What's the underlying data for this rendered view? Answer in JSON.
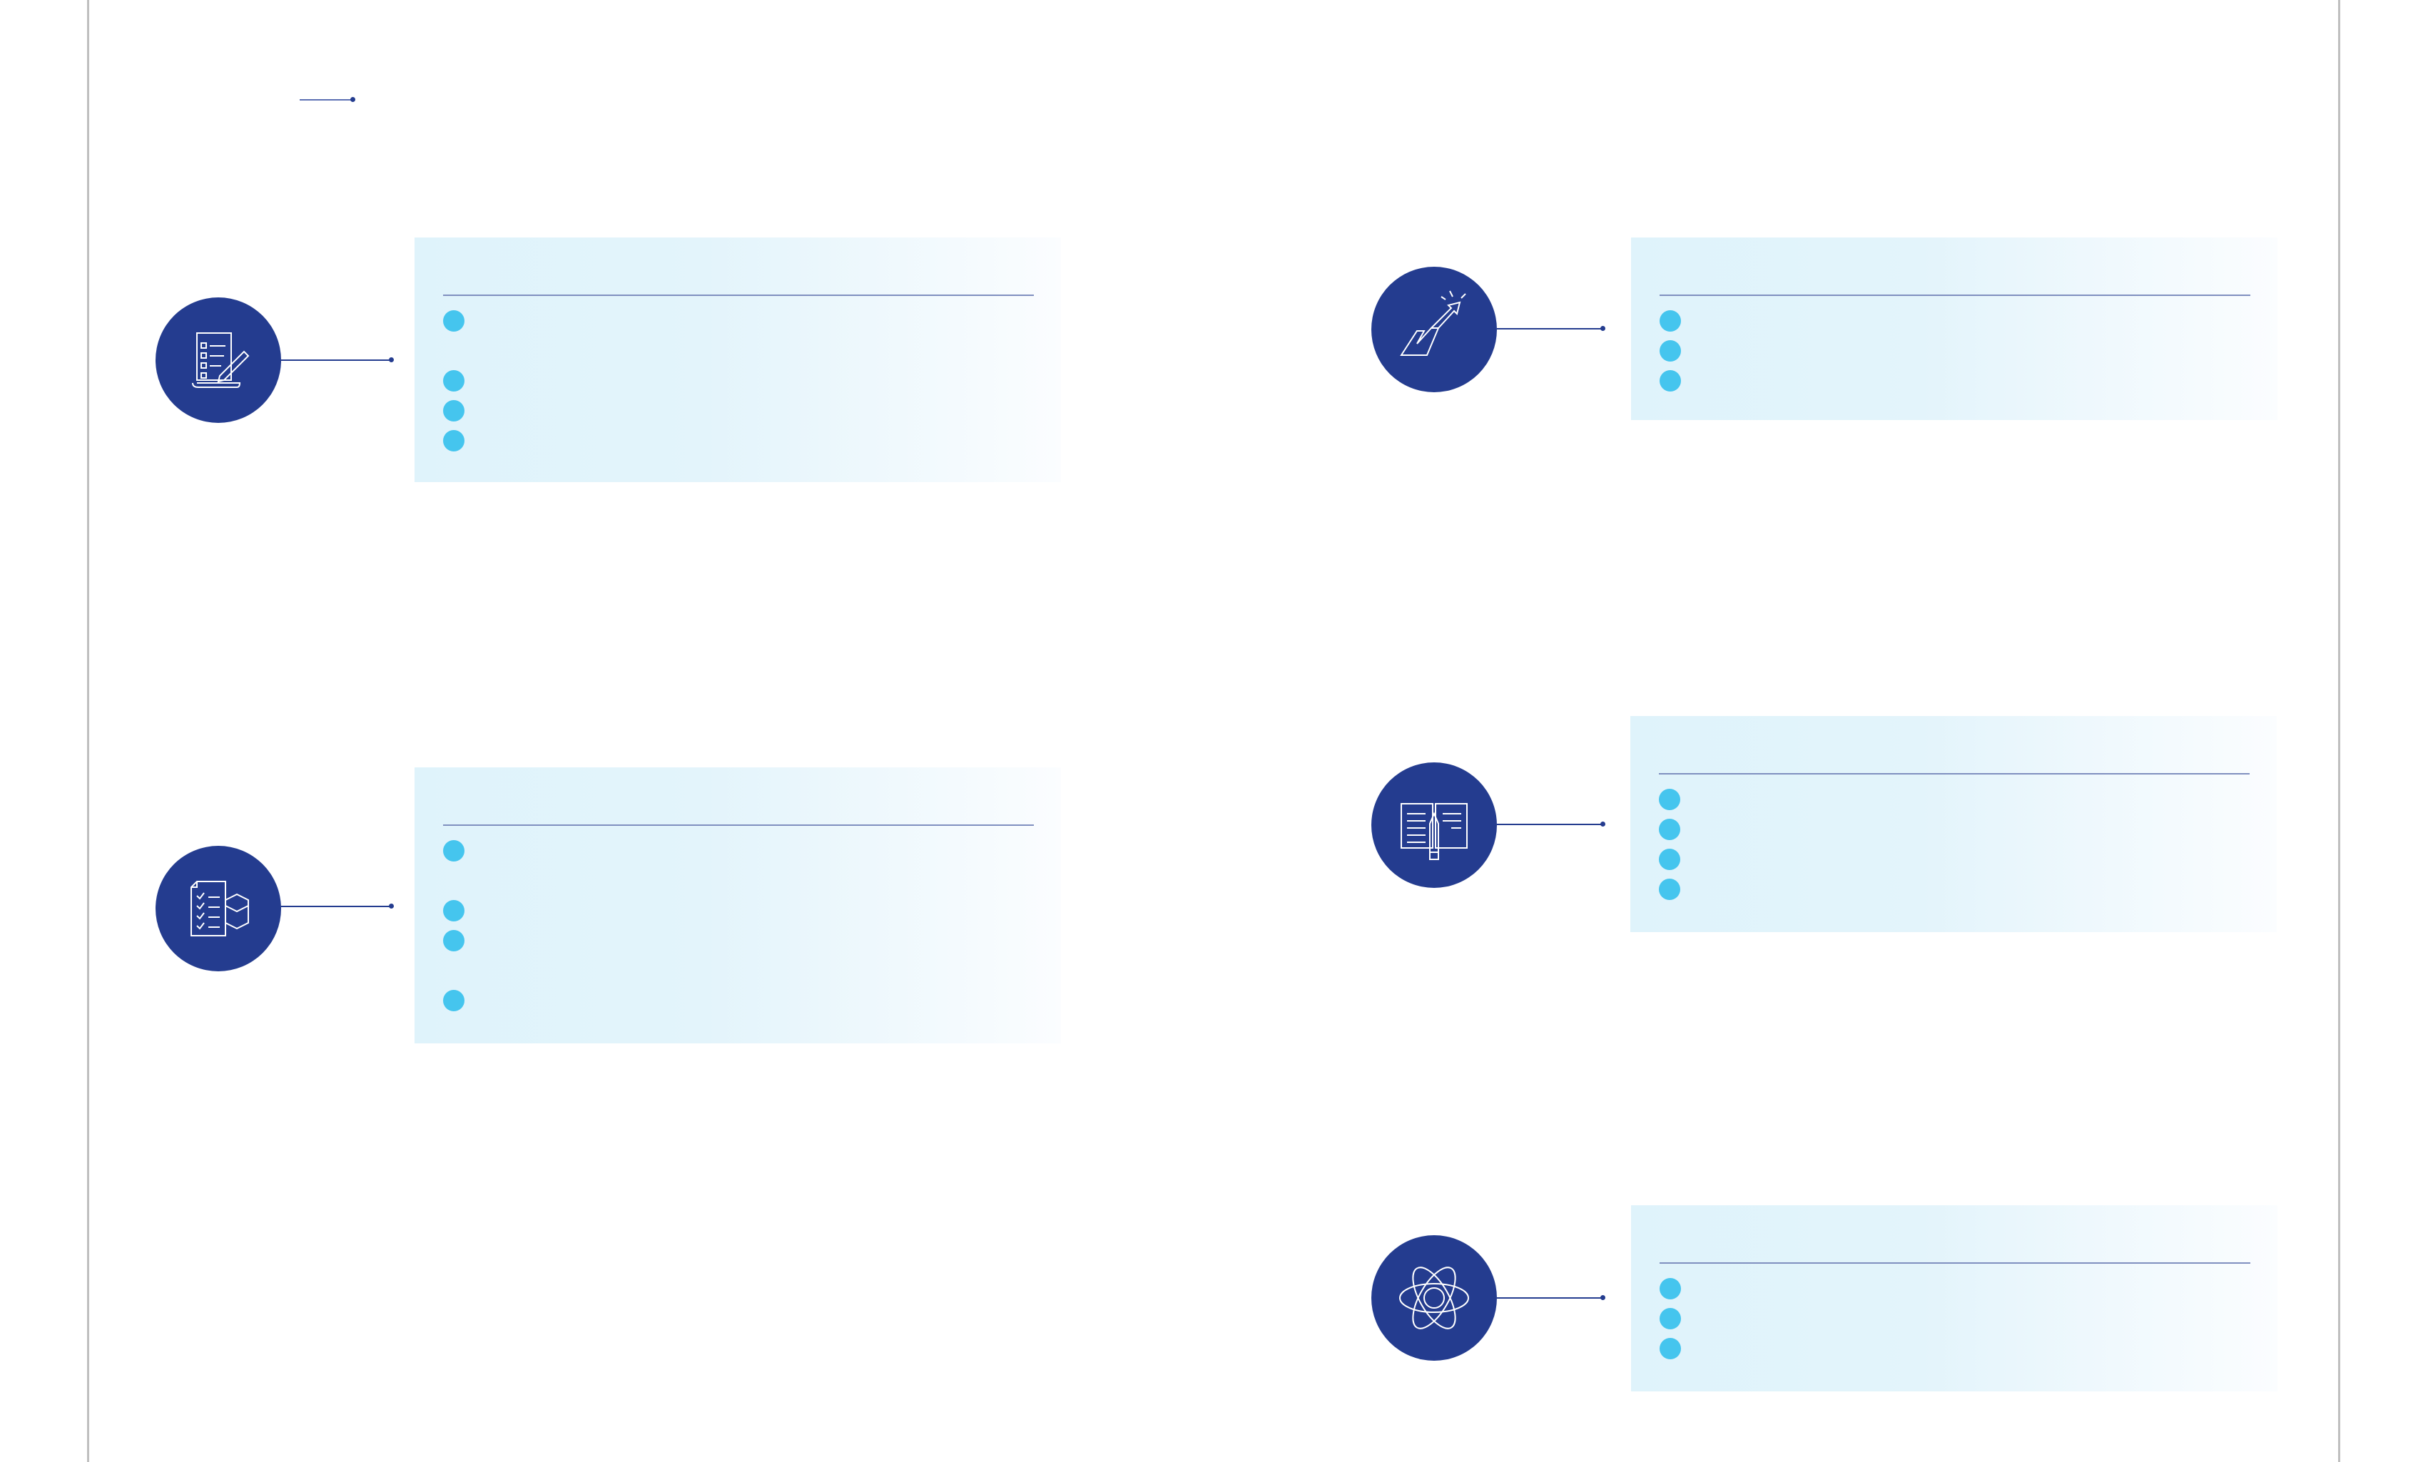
{
  "page": {
    "title": "",
    "colors": {
      "primary": "#243c8f",
      "bullet": "#45c5ee",
      "card_bg": "#dff3fb",
      "frame": "#bfbfbf"
    }
  },
  "sections": [
    {
      "icon": "checklist-pencil-icon",
      "title": "",
      "items": [
        "",
        "",
        "",
        ""
      ]
    },
    {
      "icon": "checklist-hexagon-icon",
      "title": "",
      "items": [
        "",
        "",
        "",
        ""
      ]
    },
    {
      "icon": "growth-arrow-icon",
      "title": "",
      "items": [
        "",
        "",
        ""
      ]
    },
    {
      "icon": "open-book-pencil-icon",
      "title": "",
      "items": [
        "",
        "",
        "",
        ""
      ]
    },
    {
      "icon": "atom-icon",
      "title": "",
      "items": [
        "",
        "",
        ""
      ]
    }
  ]
}
